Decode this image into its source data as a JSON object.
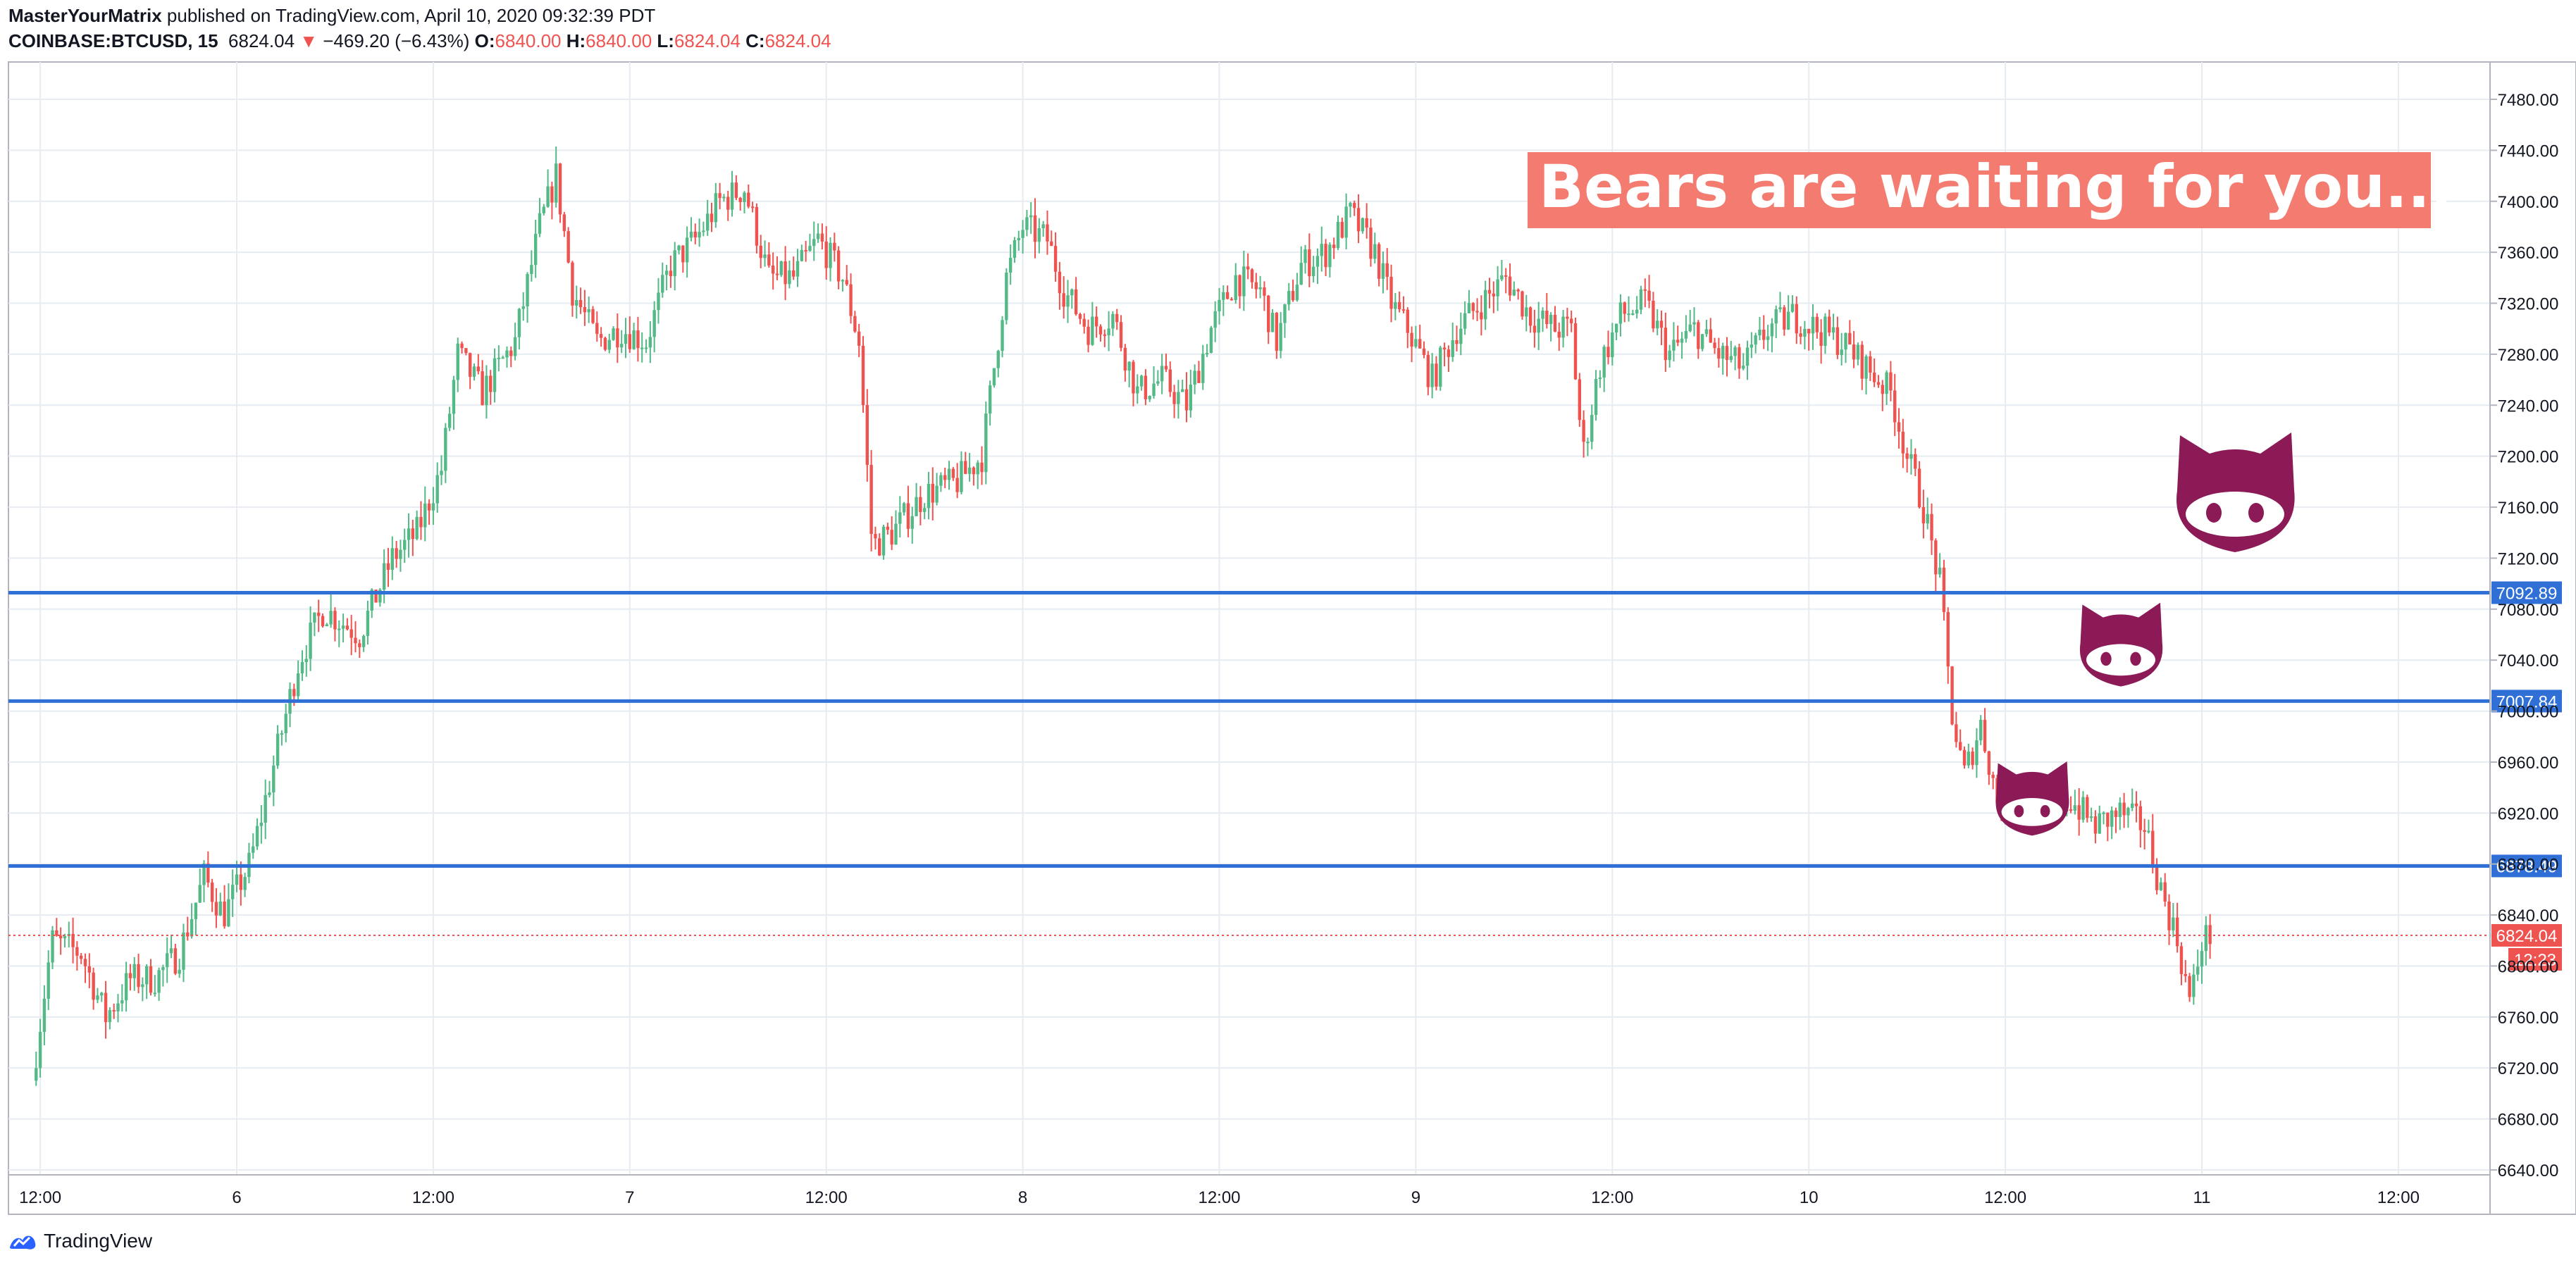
{
  "header": {
    "author": "MasterYourMatrix",
    "published_text": "published on TradingView.com, April 10, 2020 09:32:39 PDT",
    "symbol": "COINBASE:BTCUSD, 15",
    "last_price": "6824.04",
    "change_arrow": "▼",
    "change": "−469.20 (−6.43%)",
    "open_label": "O:",
    "open": "6840.00",
    "high_label": "H:",
    "high": "6840.00",
    "low_label": "L:",
    "low": "6824.04",
    "close_label": "C:",
    "close": "6824.04"
  },
  "annotation": {
    "text": "Bears are waiting for you...",
    "background": "#f47b6f",
    "color": "#ffffff"
  },
  "icons": [
    "bear-cat-icon",
    "bear-cat-icon",
    "bear-cat-icon"
  ],
  "footer": {
    "brand": "TradingView",
    "logo_icon": "tradingview-logo-icon"
  },
  "colors": {
    "up": "#26a69a",
    "up_body": "#53b987",
    "down": "#ef5350",
    "level_line": "#2f6fd6",
    "grid": "#e6ecf1",
    "mascot": "#8b1a57"
  },
  "chart_data": {
    "type": "candlestick",
    "title": "",
    "price_axis": {
      "ticks": [
        6640,
        6680,
        6720,
        6760,
        6800,
        6840,
        6880,
        6920,
        6960,
        7000,
        7040,
        7080,
        7120,
        7160,
        7200,
        7240,
        7280,
        7320,
        7360,
        7400,
        7440,
        7480
      ],
      "tick_labels": [
        "6640.00",
        "6680.00",
        "6720.00",
        "6760.00",
        "6800.00",
        "6840.00",
        "6880.00",
        "6920.00",
        "6960.00",
        "7000.00",
        "7040.00",
        "7080.00",
        "7120.00",
        "7160.00",
        "7200.00",
        "7240.00",
        "7280.00",
        "7320.00",
        "7360.00",
        "7400.00",
        "7440.00",
        "7480.00"
      ],
      "ylim": [
        6635,
        7495
      ]
    },
    "time_axis": {
      "tick_labels": [
        "12:00",
        "6",
        "12:00",
        "7",
        "12:00",
        "8",
        "12:00",
        "9",
        "12:00",
        "10",
        "12:00",
        "11",
        "12:00"
      ],
      "xlim_hours": [
        -12.8,
        150.5
      ]
    },
    "horizontal_levels": [
      {
        "price": 7092.89,
        "label": "7092.89"
      },
      {
        "price": 7007.84,
        "label": "7007.84"
      },
      {
        "price": 6878.49,
        "label": "6878.49"
      }
    ],
    "last_price": {
      "price": 6824.04,
      "label": "6824.04",
      "countdown": "12:23"
    },
    "key_points": [
      {
        "t": -12.5,
        "p": 6710
      },
      {
        "t": -11.3,
        "p": 6820
      },
      {
        "t": -9.5,
        "p": 6810
      },
      {
        "t": -8.0,
        "p": 6760
      },
      {
        "t": -6.5,
        "p": 6790
      },
      {
        "t": -5.0,
        "p": 6790
      },
      {
        "t": -3.5,
        "p": 6810
      },
      {
        "t": -2.0,
        "p": 6870
      },
      {
        "t": -0.8,
        "p": 6840
      },
      {
        "t": 0.8,
        "p": 6880
      },
      {
        "t": 2.3,
        "p": 6960
      },
      {
        "t": 3.8,
        "p": 7040
      },
      {
        "t": 5.3,
        "p": 7080
      },
      {
        "t": 7.5,
        "p": 7060
      },
      {
        "t": 9.5,
        "p": 7120
      },
      {
        "t": 11.0,
        "p": 7140
      },
      {
        "t": 12.5,
        "p": 7190
      },
      {
        "t": 13.5,
        "p": 7280
      },
      {
        "t": 15.0,
        "p": 7250
      },
      {
        "t": 17.0,
        "p": 7290
      },
      {
        "t": 18.5,
        "p": 7380
      },
      {
        "t": 19.5,
        "p": 7420
      },
      {
        "t": 20.5,
        "p": 7330
      },
      {
        "t": 22.0,
        "p": 7290
      },
      {
        "t": 23.5,
        "p": 7300
      },
      {
        "t": 25.0,
        "p": 7290
      },
      {
        "t": 26.5,
        "p": 7350
      },
      {
        "t": 28.0,
        "p": 7370
      },
      {
        "t": 29.5,
        "p": 7400
      },
      {
        "t": 31.0,
        "p": 7410
      },
      {
        "t": 32.5,
        "p": 7340
      },
      {
        "t": 34.0,
        "p": 7340
      },
      {
        "t": 35.5,
        "p": 7370
      },
      {
        "t": 37.0,
        "p": 7340
      },
      {
        "t": 38.0,
        "p": 7290
      },
      {
        "t": 38.8,
        "p": 7130
      },
      {
        "t": 40.0,
        "p": 7140
      },
      {
        "t": 42.0,
        "p": 7170
      },
      {
        "t": 44.0,
        "p": 7180
      },
      {
        "t": 45.5,
        "p": 7200
      },
      {
        "t": 47.0,
        "p": 7340
      },
      {
        "t": 48.0,
        "p": 7380
      },
      {
        "t": 49.5,
        "p": 7370
      },
      {
        "t": 50.5,
        "p": 7330
      },
      {
        "t": 52.0,
        "p": 7300
      },
      {
        "t": 53.5,
        "p": 7310
      },
      {
        "t": 55.0,
        "p": 7250
      },
      {
        "t": 56.5,
        "p": 7260
      },
      {
        "t": 58.0,
        "p": 7240
      },
      {
        "t": 59.5,
        "p": 7300
      },
      {
        "t": 61.0,
        "p": 7340
      },
      {
        "t": 62.5,
        "p": 7330
      },
      {
        "t": 63.5,
        "p": 7290
      },
      {
        "t": 65.0,
        "p": 7350
      },
      {
        "t": 66.5,
        "p": 7360
      },
      {
        "t": 68.0,
        "p": 7390
      },
      {
        "t": 69.5,
        "p": 7360
      },
      {
        "t": 70.5,
        "p": 7320
      },
      {
        "t": 71.5,
        "p": 7300
      },
      {
        "t": 73.0,
        "p": 7260
      },
      {
        "t": 74.5,
        "p": 7300
      },
      {
        "t": 76.0,
        "p": 7320
      },
      {
        "t": 77.5,
        "p": 7340
      },
      {
        "t": 79.0,
        "p": 7310
      },
      {
        "t": 80.5,
        "p": 7300
      },
      {
        "t": 81.5,
        "p": 7300
      },
      {
        "t": 82.2,
        "p": 7200
      },
      {
        "t": 83.2,
        "p": 7270
      },
      {
        "t": 84.5,
        "p": 7310
      },
      {
        "t": 86.0,
        "p": 7320
      },
      {
        "t": 87.5,
        "p": 7280
      },
      {
        "t": 89.0,
        "p": 7300
      },
      {
        "t": 90.5,
        "p": 7280
      },
      {
        "t": 92.0,
        "p": 7270
      },
      {
        "t": 93.5,
        "p": 7300
      },
      {
        "t": 95.0,
        "p": 7310
      },
      {
        "t": 96.5,
        "p": 7300
      },
      {
        "t": 98.0,
        "p": 7290
      },
      {
        "t": 99.5,
        "p": 7270
      },
      {
        "t": 101.0,
        "p": 7250
      },
      {
        "t": 102.0,
        "p": 7200
      },
      {
        "t": 103.0,
        "p": 7160
      },
      {
        "t": 104.0,
        "p": 7100
      },
      {
        "t": 104.8,
        "p": 6990
      },
      {
        "t": 105.5,
        "p": 6950
      },
      {
        "t": 106.5,
        "p": 6990
      },
      {
        "t": 107.5,
        "p": 6930
      },
      {
        "t": 109.0,
        "p": 6930
      },
      {
        "t": 110.5,
        "p": 6920
      },
      {
        "t": 112.0,
        "p": 6930
      },
      {
        "t": 113.5,
        "p": 6910
      },
      {
        "t": 115.0,
        "p": 6920
      },
      {
        "t": 116.5,
        "p": 6910
      },
      {
        "t": 117.5,
        "p": 6860
      },
      {
        "t": 118.5,
        "p": 6820
      },
      {
        "t": 119.3,
        "p": 6770
      },
      {
        "t": 120.0,
        "p": 6820
      },
      {
        "t": 120.5,
        "p": 6824
      }
    ]
  }
}
